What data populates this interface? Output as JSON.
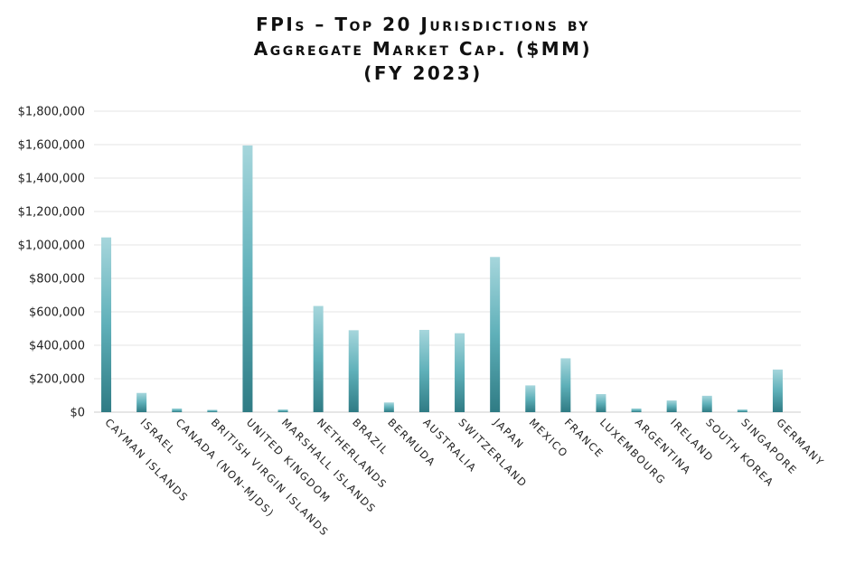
{
  "chart_data": {
    "type": "bar",
    "title_lines": [
      "FPIs – Top 20 Jurisdictions by",
      "Aggregate Market Cap. ($MM)",
      "(FY 2023)"
    ],
    "categories": [
      "Cayman Islands",
      "Israel",
      "Canada (Non-MJDS)",
      "British Virgin Islands",
      "United Kingdom",
      "Marshall Islands",
      "Netherlands",
      "Brazil",
      "Bermuda",
      "Australia",
      "Switzerland",
      "Japan",
      "Mexico",
      "France",
      "Luxembourg",
      "Argentina",
      "Ireland",
      "South Korea",
      "Singapore",
      "Germany"
    ],
    "values": [
      1045000,
      115000,
      22000,
      14000,
      1595000,
      16000,
      635000,
      490000,
      58000,
      492000,
      472000,
      928000,
      160000,
      322000,
      108000,
      22000,
      70000,
      98000,
      16000,
      255000
    ],
    "ylim": [
      0,
      1800000
    ],
    "yticks": [
      "$0",
      "$200,000",
      "$400,000",
      "$600,000",
      "$800,000",
      "$1,000,000",
      "$1,200,000",
      "$1,400,000",
      "$1,600,000",
      "$1,800,000"
    ],
    "ytick_values": [
      0,
      200000,
      400000,
      600000,
      800000,
      1000000,
      1200000,
      1400000,
      1600000,
      1800000
    ],
    "xlabel": "",
    "ylabel": "",
    "grid": true,
    "colors": {
      "bar_top": "#a6d6dc",
      "bar_mid": "#5fb0b9",
      "bar_bottom": "#2f7b84",
      "grid": "#e4e4e4",
      "axis": "#cccccc"
    }
  }
}
